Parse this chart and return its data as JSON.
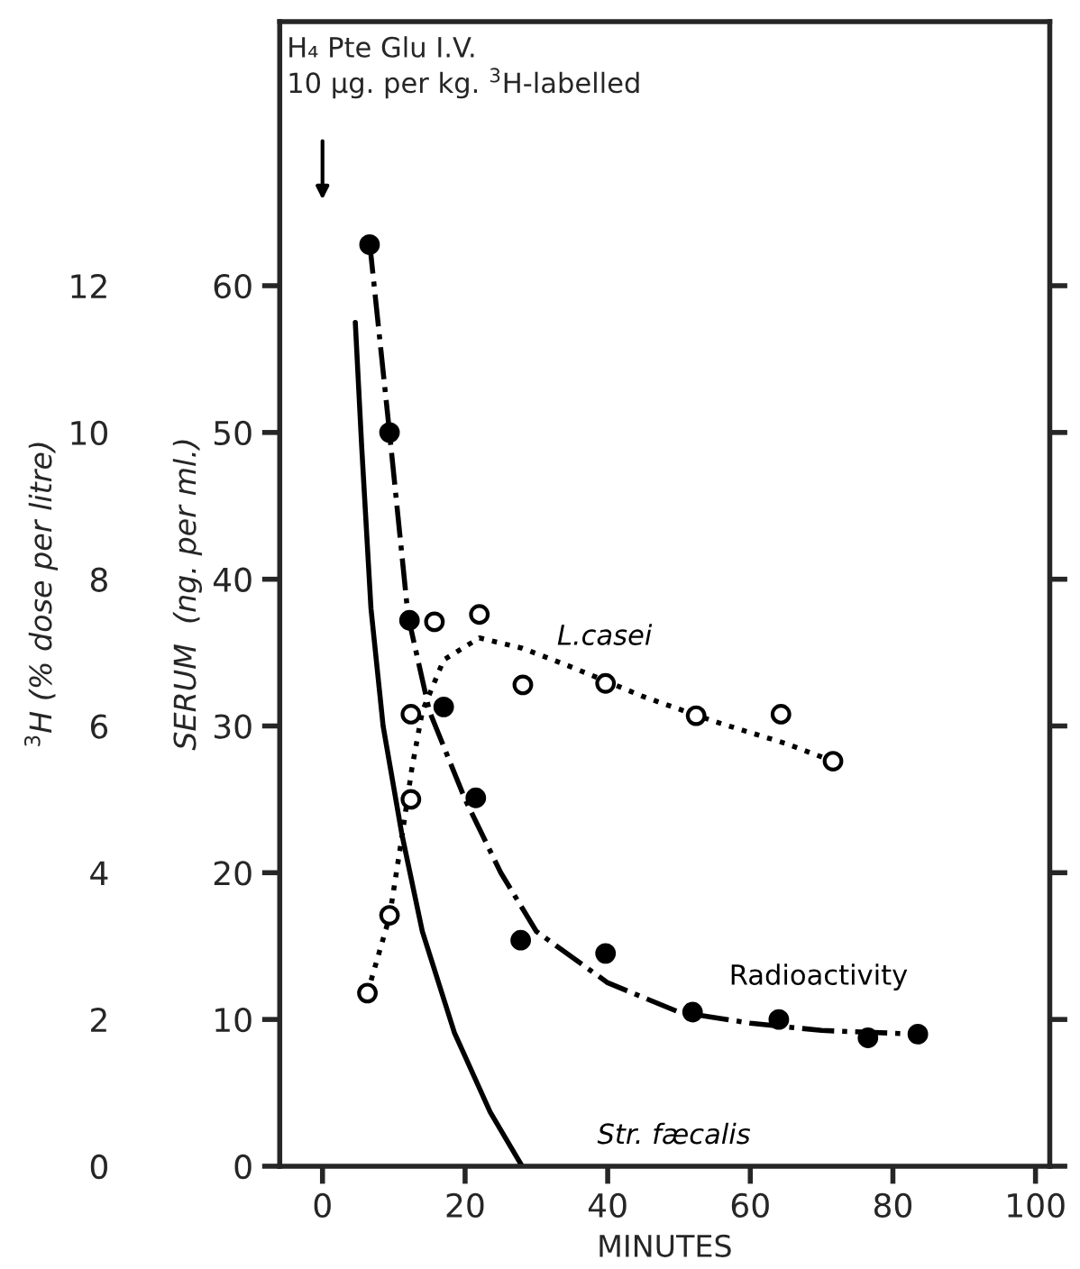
{
  "chart_data": {
    "type": "scatter",
    "xlabel": "MINUTES",
    "ylabel": "SERUM  (ng. per ml.)",
    "y2label": "$^{3}$H (% dose per litre)",
    "xlim": [
      -6,
      102
    ],
    "xticks": [
      0,
      20,
      40,
      60,
      80,
      100
    ],
    "ylim": [
      0,
      78
    ],
    "yticks": [
      0,
      10,
      20,
      30,
      40,
      50,
      60
    ],
    "y2lim": [
      0,
      15.6
    ],
    "y2ticks": [
      0,
      2,
      4,
      6,
      8,
      10,
      12
    ],
    "grid": false,
    "series": [
      {
        "axis": "y2",
        "color": "#000000",
        "marker": "circle",
        "x": [
          6.6,
          9.4,
          12.2,
          17,
          21.5,
          27.8,
          39.7,
          51.9,
          64,
          76.5,
          83.5
        ],
        "values": [
          12.56,
          10.0,
          7.44,
          6.26,
          5.02,
          3.08,
          2.9,
          2.1,
          2.0,
          1.75,
          1.8
        ]
      },
      {
        "type": "line",
        "name": "Radioactivity",
        "axis": "y2",
        "color": "#000000",
        "line_style": "dashdot",
        "x": [
          6.6,
          9.4,
          12,
          15,
          20,
          25,
          30,
          40,
          50,
          60,
          70,
          83.5
        ],
        "values": [
          12.6,
          10,
          7.5,
          6.2,
          5,
          4,
          3.2,
          2.5,
          2.1,
          1.95,
          1.85,
          1.8
        ]
      },
      {
        "axis": "y",
        "color": "#000000",
        "marker": "open circle",
        "x": [
          6.3,
          9.4,
          12.4,
          12.4,
          15.7,
          22,
          28.1,
          39.7,
          52.4,
          64.3,
          71.6
        ],
        "values": [
          11.8,
          17.1,
          25,
          30.8,
          37.1,
          37.6,
          32.8,
          32.9,
          30.7,
          30.8,
          27.6
        ]
      },
      {
        "type": "line",
        "name": "L.casei",
        "axis": "y",
        "color": "#000000",
        "line_style": "dotted",
        "x": [
          6.3,
          9.4,
          11,
          12.5,
          14,
          17,
          22,
          28,
          35,
          45,
          55,
          65,
          71.6
        ],
        "values": [
          11.8,
          17,
          22,
          27,
          31,
          34.5,
          36,
          35.3,
          34,
          32,
          30.3,
          28.8,
          27.6
        ]
      },
      {
        "type": "line",
        "name": "Str. fæcalis",
        "axis": "y",
        "color": "#000000",
        "line_style": "solid",
        "x": [
          4.6,
          5.5,
          6.8,
          8.5,
          11.1,
          14,
          18.5,
          23.5,
          28
        ],
        "values": [
          57.5,
          49,
          38,
          30,
          22.7,
          16,
          9.1,
          3.7,
          0
        ]
      }
    ],
    "annotations": [
      "H₄ Pte Glu I.V.\n10 µg. per kg. $^{3}$H-labelled"
    ]
  }
}
